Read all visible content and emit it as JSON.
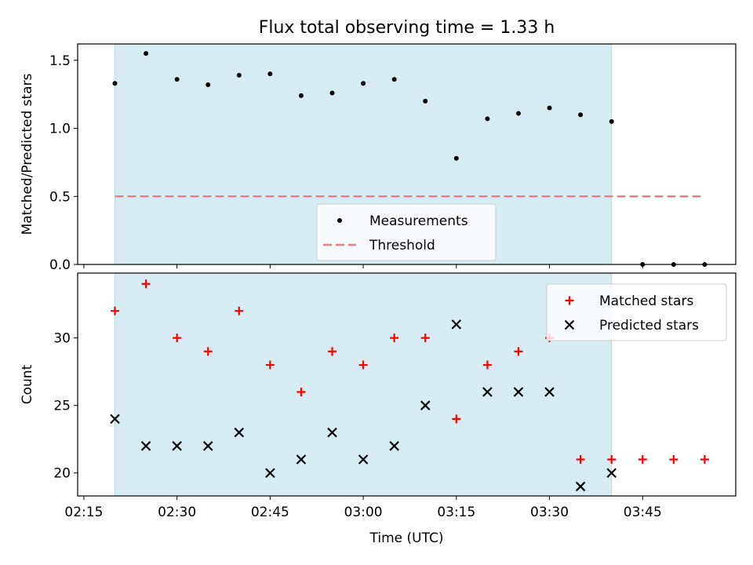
{
  "title": "Flux total observing time = 1.33 h",
  "colors": {
    "shade": "#add8e6",
    "threshold": "#f08080",
    "matched": "#ff0000",
    "predicted": "#000000",
    "measurement": "#000000"
  },
  "chart_data": [
    {
      "type": "scatter",
      "ylabel": "Matched/Predicted stars",
      "ylim": [
        0,
        1.62
      ],
      "yticks": [
        0.0,
        0.5,
        1.0,
        1.5
      ],
      "ytick_labels": [
        "0.0",
        "0.5",
        "1.0",
        "1.5"
      ],
      "shaded_span": [
        "02:20",
        "03:40"
      ],
      "threshold": {
        "name": "Threshold",
        "value": 0.5,
        "x_range": [
          "02:20",
          "03:55"
        ]
      },
      "legend_placement": "lower-center",
      "series": [
        {
          "name": "Measurements",
          "marker": "dot",
          "x": [
            "02:20",
            "02:25",
            "02:30",
            "02:35",
            "02:40",
            "02:45",
            "02:50",
            "02:55",
            "03:00",
            "03:05",
            "03:10",
            "03:15",
            "03:20",
            "03:25",
            "03:30",
            "03:35",
            "03:40",
            "03:45",
            "03:50",
            "03:55"
          ],
          "y": [
            1.33,
            1.55,
            1.36,
            1.32,
            1.39,
            1.4,
            1.24,
            1.26,
            1.33,
            1.36,
            1.2,
            0.78,
            1.07,
            1.11,
            1.15,
            1.1,
            1.05,
            0,
            0,
            0
          ]
        }
      ]
    },
    {
      "type": "scatter",
      "xlabel": "Time (UTC)",
      "ylabel": "Count",
      "ylim": [
        18.3,
        34.8
      ],
      "yticks": [
        20,
        25,
        30
      ],
      "ytick_labels": [
        "20",
        "25",
        "30"
      ],
      "xlim": [
        "02:14",
        "04:00"
      ],
      "xticks": [
        "02:15",
        "02:30",
        "02:45",
        "03:00",
        "03:15",
        "03:30",
        "03:45"
      ],
      "shaded_span": [
        "02:20",
        "03:40"
      ],
      "legend_placement": "upper-right",
      "series": [
        {
          "name": "Matched stars",
          "marker": "plus",
          "x": [
            "02:20",
            "02:25",
            "02:30",
            "02:35",
            "02:40",
            "02:45",
            "02:50",
            "02:55",
            "03:00",
            "03:05",
            "03:10",
            "03:15",
            "03:20",
            "03:25",
            "03:30",
            "03:35",
            "03:40",
            "03:45",
            "03:50",
            "03:55"
          ],
          "y": [
            32,
            34,
            30,
            29,
            32,
            28,
            26,
            29,
            28,
            30,
            30,
            24,
            28,
            29,
            30,
            21,
            21,
            21,
            21,
            21
          ]
        },
        {
          "name": "Predicted stars",
          "marker": "x",
          "x": [
            "02:20",
            "02:25",
            "02:30",
            "02:35",
            "02:40",
            "02:45",
            "02:50",
            "02:55",
            "03:00",
            "03:05",
            "03:10",
            "03:15",
            "03:20",
            "03:25",
            "03:30",
            "03:35",
            "03:40"
          ],
          "y": [
            24,
            22,
            22,
            22,
            23,
            20,
            21,
            23,
            21,
            22,
            25,
            31,
            26,
            26,
            26,
            19,
            20
          ]
        }
      ]
    }
  ]
}
